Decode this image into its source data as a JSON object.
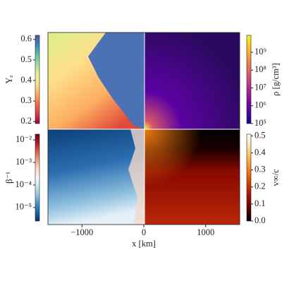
{
  "chart_data": {
    "type": "image-panels",
    "x_label": "x [km]",
    "xlim": [
      -1550,
      1550
    ],
    "xticks": [
      {
        "value": -1000,
        "label": "−1000"
      },
      0,
      1000
    ],
    "colorbars": [
      {
        "label": "Yₑ",
        "log": false,
        "lim": [
          0.19,
          0.62
        ],
        "ticks": [
          0.2,
          0.3,
          0.4,
          0.5,
          0.6
        ],
        "colors": [
          "#9e0142",
          "#d53e4f",
          "#f46d43",
          "#fdae61",
          "#fee08b",
          "#e6f598",
          "#abdda4",
          "#66c2a5",
          "#3288bd",
          "#5e4fa2"
        ]
      },
      {
        "label": "ρ [g/cm³]",
        "log": true,
        "lim": [
          100000,
          9000000000
        ],
        "ticks": [
          {
            "value": 100000,
            "label": "10⁵"
          },
          {
            "value": 1000000,
            "label": "10⁶"
          },
          {
            "value": 10000000,
            "label": "10⁷"
          },
          {
            "value": 100000000,
            "label": "10⁸"
          },
          {
            "value": 1000000000,
            "label": "10⁹"
          }
        ],
        "colors": [
          "#0d0887",
          "#46039f",
          "#7201a8",
          "#9c179e",
          "#bd3786",
          "#d8576b",
          "#ed7953",
          "#fb9f3a",
          "#fdca26",
          "#f0f921"
        ]
      },
      {
        "label": "β⁻¹",
        "log": true,
        "lim": [
          2.5e-06,
          0.018
        ],
        "ticks": [
          {
            "value": 1e-05,
            "label": "10⁻⁵"
          },
          {
            "value": 0.0001,
            "label": "10⁻⁴"
          },
          {
            "value": 0.001,
            "label": "10⁻³"
          },
          {
            "value": 0.01,
            "label": "10⁻²"
          }
        ],
        "colors": [
          "#053061",
          "#2166ac",
          "#4393c3",
          "#92c5de",
          "#d1e5f0",
          "#f7f7f7",
          "#fddbc7",
          "#f4a582",
          "#d6604d",
          "#b2182b",
          "#67001f"
        ]
      },
      {
        "label": "v∞/c",
        "log": false,
        "lim": [
          0,
          0.51
        ],
        "ticks": [
          {
            "value": 0,
            "label": "0.0"
          },
          0.1,
          0.2,
          0.3,
          0.4,
          0.5
        ],
        "colors": [
          "#000000",
          "#5a0000",
          "#a01000",
          "#d03c00",
          "#f07a10",
          "#ffb050",
          "#ffe0a0",
          "#ffffff"
        ]
      }
    ]
  }
}
